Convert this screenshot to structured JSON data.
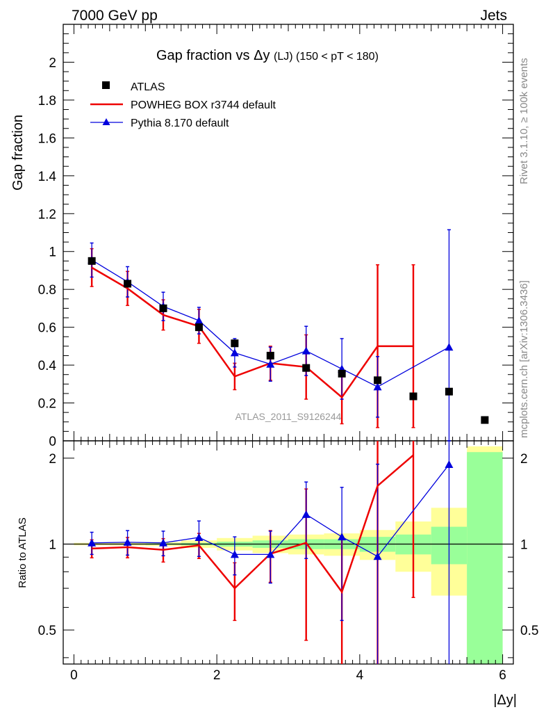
{
  "header": {
    "left": "7000 GeV pp",
    "right": "Jets"
  },
  "side_labels": {
    "rivet": "Rivet 3.1.10, ≥ 100k events",
    "mcplots": "mcplots.cern.ch [arXiv:1306.3436]"
  },
  "chart_data": [
    {
      "type": "scatter",
      "panel": "main",
      "title": "Gap fraction vsΔy (LJ) (150 < pT < 180)",
      "title_parts": {
        "main": "Gap fraction vs",
        "delta": "Δy",
        "sub": "(LJ) (150 < pT < 180)"
      },
      "ylabel": "Gap fraction",
      "xlabel": "|Δy|",
      "xlim": [
        -0.15,
        6.15
      ],
      "ylim": [
        0,
        2.2
      ],
      "yticks": [
        0,
        0.2,
        0.4,
        0.6,
        0.8,
        1,
        1.2,
        1.4,
        1.6,
        1.8,
        2
      ],
      "ytick_labels": [
        "0",
        "0.2",
        "0.4",
        "0.6",
        "0.8",
        "1",
        "1.2",
        "1.4",
        "1.6",
        "1.8",
        "2"
      ],
      "watermark": "ATLAS_2011_S9126244",
      "legend": {
        "position": "top-left",
        "entries": [
          "ATLAS",
          "POWHEG BOX r3744 default",
          "Pythia 8.170 default"
        ]
      },
      "bins": [
        [
          0,
          0.5
        ],
        [
          0.5,
          1
        ],
        [
          1,
          1.5
        ],
        [
          1.5,
          2
        ],
        [
          2,
          2.5
        ],
        [
          2.5,
          3
        ],
        [
          3,
          3.5
        ],
        [
          3.5,
          4
        ],
        [
          4,
          4.5
        ],
        [
          4.5,
          5
        ],
        [
          5,
          5.5
        ],
        [
          5.5,
          6
        ]
      ],
      "series": [
        {
          "name": "ATLAS",
          "color": "#000000",
          "marker": "square",
          "x": [
            0.25,
            0.75,
            1.25,
            1.75,
            2.25,
            2.75,
            3.25,
            3.75,
            4.25,
            4.75,
            5.25,
            5.75
          ],
          "y": [
            0.95,
            0.83,
            0.7,
            0.6,
            0.515,
            0.45,
            0.385,
            0.355,
            0.32,
            0.235,
            0.26,
            0.11
          ]
        },
        {
          "name": "POWHEG BOX r3744 default",
          "color": "#ee0000",
          "marker": "histogram-line",
          "x": [
            0.25,
            0.75,
            1.25,
            1.75,
            2.25,
            2.75,
            3.25,
            3.75,
            4.25,
            4.75
          ],
          "y": [
            0.915,
            0.805,
            0.665,
            0.605,
            0.34,
            0.41,
            0.39,
            0.23,
            0.5,
            0.5
          ],
          "err": [
            0.1,
            0.09,
            0.08,
            0.09,
            0.07,
            0.09,
            0.17,
            0.14,
            0.43,
            0.43
          ]
        },
        {
          "name": "Pythia 8.170 default",
          "color": "#0000dd",
          "marker": "triangle",
          "x": [
            0.25,
            0.75,
            1.25,
            1.75,
            2.25,
            2.75,
            3.25,
            3.75,
            4.25,
            5.25
          ],
          "y": [
            0.955,
            0.84,
            0.71,
            0.635,
            0.465,
            0.405,
            0.475,
            0.38,
            0.285,
            0.495
          ],
          "err": [
            0.09,
            0.08,
            0.075,
            0.07,
            0.075,
            0.09,
            0.13,
            0.16,
            0.16,
            0.62
          ]
        }
      ]
    },
    {
      "type": "scatter",
      "panel": "ratio",
      "ylabel": "Ratio to ATLAS",
      "xlabel": "|Δy|",
      "xlim": [
        -0.15,
        6.15
      ],
      "ylim": [
        0.38,
        2.3
      ],
      "yscale": "log",
      "yticks": [
        0.5,
        1,
        2
      ],
      "ytick_labels": [
        "0.5",
        "1",
        "2"
      ],
      "xticks": [
        0,
        2,
        4,
        6
      ],
      "xtick_labels": [
        "0",
        "2",
        "4",
        "6"
      ],
      "bands": {
        "green_half_width": [
          0.003,
          0.004,
          0.006,
          0.01,
          0.02,
          0.03,
          0.04,
          0.04,
          0.06,
          0.08,
          0.15,
          1.1
        ],
        "yellow_half_width": [
          0.01,
          0.012,
          0.016,
          0.03,
          0.05,
          0.07,
          0.08,
          0.09,
          0.12,
          0.2,
          0.34,
          1.2
        ]
      },
      "series": [
        {
          "name": "POWHEG BOX r3744 default",
          "color": "#ee0000",
          "x": [
            0.25,
            0.75,
            1.25,
            1.75,
            2.25,
            2.75,
            3.25,
            3.75,
            4.25,
            4.75
          ],
          "y": [
            0.965,
            0.975,
            0.955,
            0.99,
            0.7,
            0.925,
            1.01,
            0.68,
            1.6,
            2.05
          ],
          "err": [
            0.07,
            0.08,
            0.09,
            0.1,
            0.16,
            0.19,
            0.55,
            0.36,
            1.4,
            1.4
          ]
        },
        {
          "name": "Pythia 8.170 default",
          "color": "#0000dd",
          "x": [
            0.25,
            0.75,
            1.25,
            1.75,
            2.25,
            2.75,
            3.25,
            3.75,
            4.25,
            5.25
          ],
          "y": [
            1.01,
            1.015,
            1.01,
            1.055,
            0.92,
            0.92,
            1.27,
            1.06,
            0.905,
            1.9
          ],
          "err": [
            0.09,
            0.1,
            0.1,
            0.15,
            0.14,
            0.19,
            0.38,
            0.52,
            1.0,
            2.2
          ]
        }
      ]
    }
  ]
}
